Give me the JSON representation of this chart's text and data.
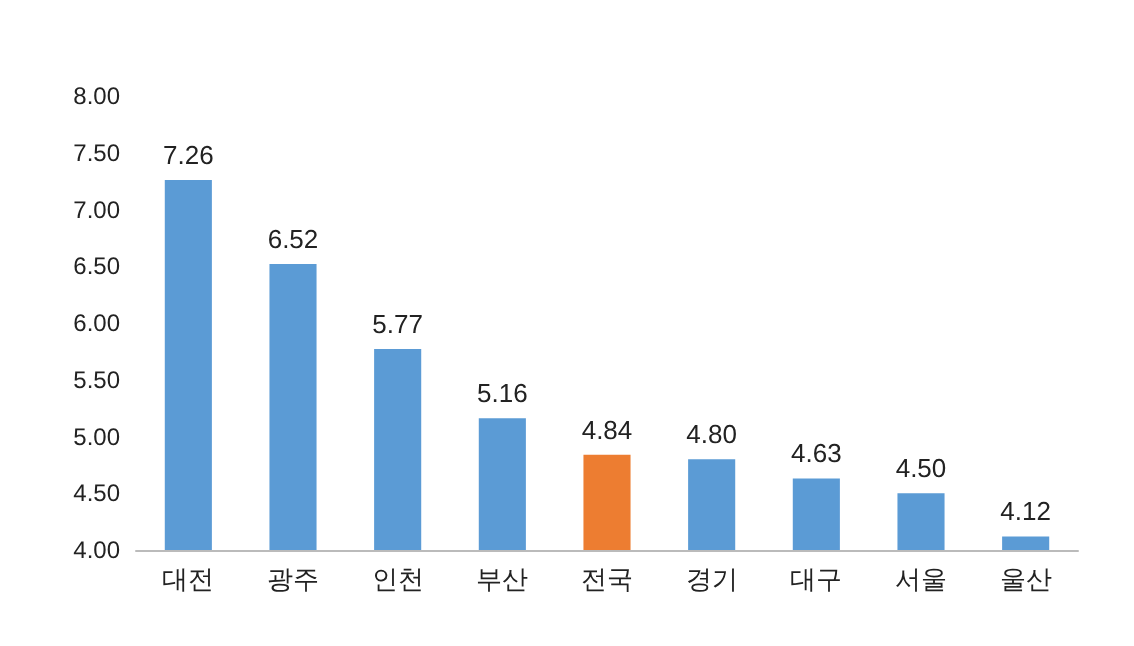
{
  "chart_data": {
    "type": "bar",
    "categories": [
      "대전",
      "광주",
      "인천",
      "부산",
      "전국",
      "경기",
      "대구",
      "서울",
      "울산"
    ],
    "values": [
      7.26,
      6.52,
      5.77,
      5.16,
      4.84,
      4.8,
      4.63,
      4.5,
      4.12
    ],
    "colors": [
      "#5b9bd5",
      "#5b9bd5",
      "#5b9bd5",
      "#5b9bd5",
      "#ed7d31",
      "#5b9bd5",
      "#5b9bd5",
      "#5b9bd5",
      "#5b9bd5"
    ],
    "value_labels": [
      "7.26",
      "6.52",
      "5.77",
      "5.16",
      "4.84",
      "4.80",
      "4.63",
      "4.50",
      "4.12"
    ],
    "ylim": [
      4,
      8
    ],
    "yticks": [
      {
        "value": 4,
        "label": "4.00"
      },
      {
        "value": 4.5,
        "label": "4.50"
      },
      {
        "value": 5,
        "label": "5.00"
      },
      {
        "value": 5.5,
        "label": "5.50"
      },
      {
        "value": 6,
        "label": "6.00"
      },
      {
        "value": 6.5,
        "label": "6.50"
      },
      {
        "value": 7,
        "label": "7.00"
      },
      {
        "value": 7.5,
        "label": "7.50"
      },
      {
        "value": 8,
        "label": "8.00"
      }
    ],
    "grid": false
  }
}
